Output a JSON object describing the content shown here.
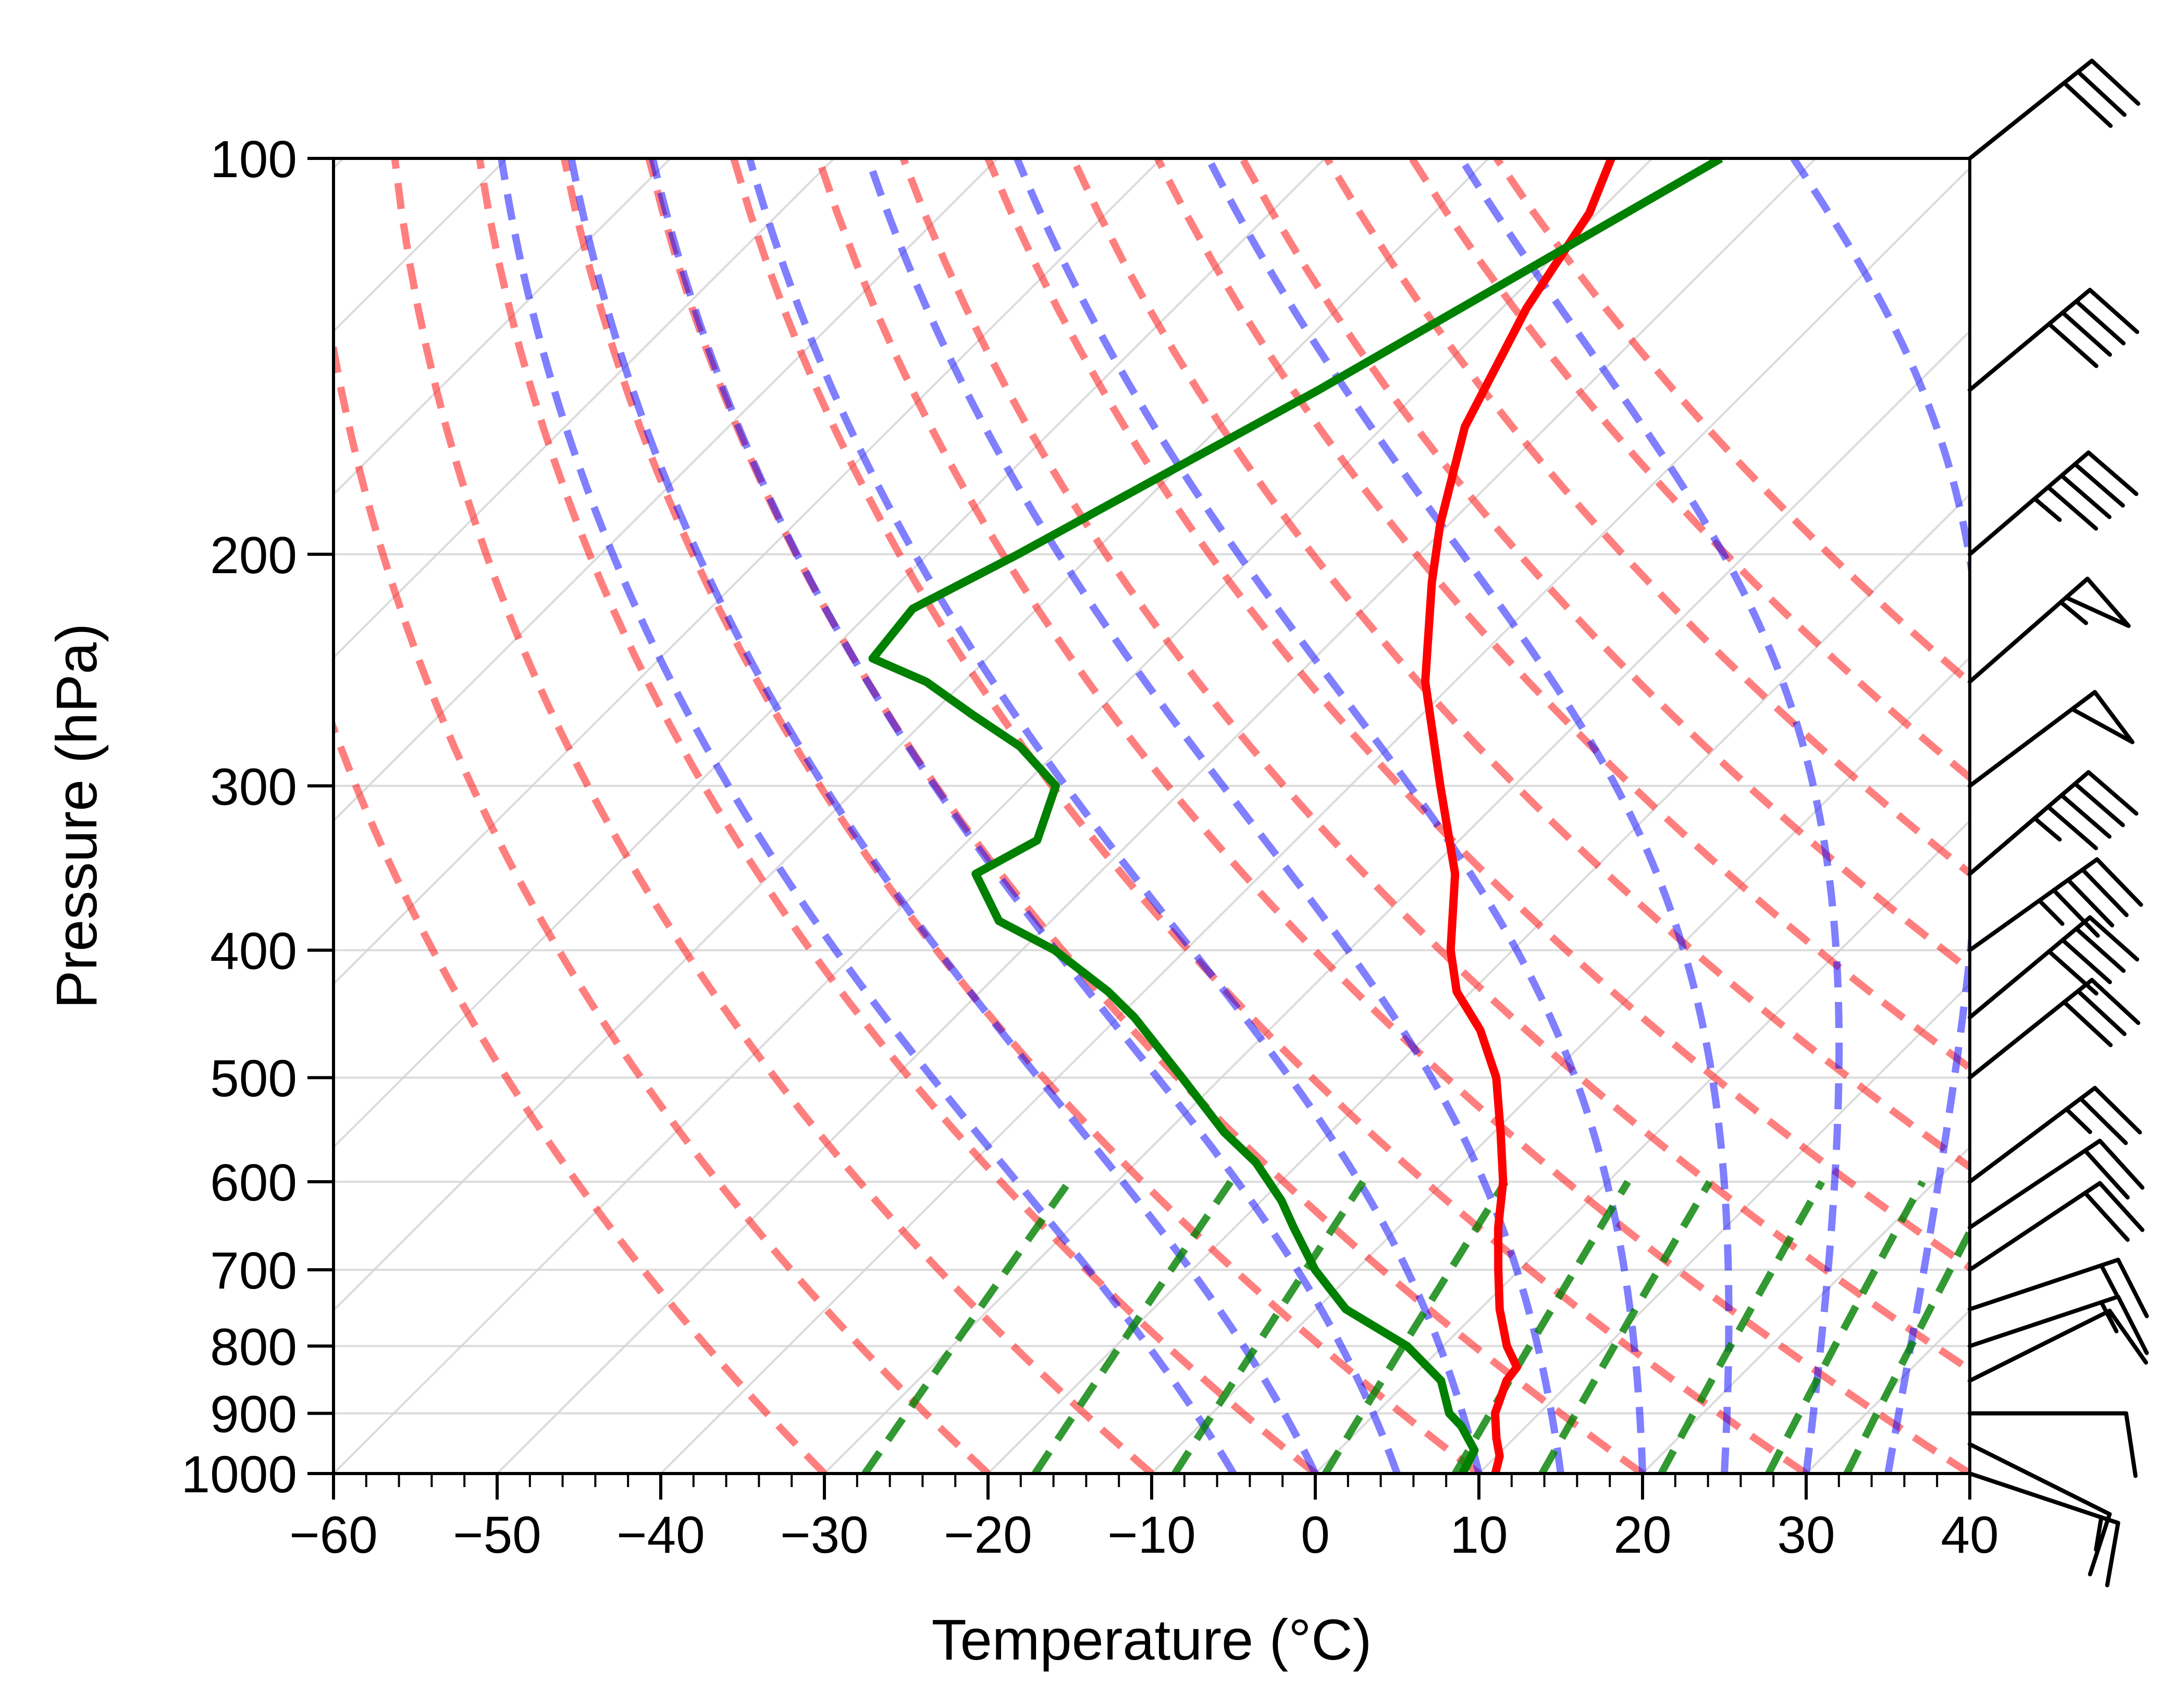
{
  "chart_data": {
    "type": "line",
    "subtype": "skew-t log-p",
    "xlabel": "Temperature (°C)",
    "ylabel": "Pressure (hPa)",
    "xlim": [
      -60,
      40
    ],
    "ylim": [
      1000,
      100
    ],
    "y_scale": "log",
    "x_ticks": [
      -60,
      -50,
      -40,
      -30,
      -20,
      -10,
      0,
      10,
      20,
      30,
      40
    ],
    "x_tick_labels": [
      "−60",
      "−50",
      "−40",
      "−30",
      "−20",
      "−10",
      "0",
      "10",
      "20",
      "30",
      "40"
    ],
    "y_ticks": [
      100,
      200,
      300,
      400,
      500,
      600,
      700,
      800,
      900,
      1000
    ],
    "y_tick_labels": [
      "100",
      "200",
      "300",
      "400",
      "500",
      "600",
      "700",
      "800",
      "900",
      "1000"
    ],
    "grid": true,
    "colors": {
      "temperature": "#ff0000",
      "dewpoint": "#008000",
      "dry_adiabats": "#ff0000",
      "moist_adiabats": "#0000ff",
      "mixing_ratio_lines": "#008000",
      "isotherms": "#d3d3d3",
      "wind_barbs": "#000000"
    },
    "series": [
      {
        "role": "temperature",
        "style": "solid",
        "points": [
          {
            "p": 1000,
            "t": 11.0
          },
          {
            "p": 970,
            "t": 10.2
          },
          {
            "p": 940,
            "t": 8.9
          },
          {
            "p": 900,
            "t": 7.3
          },
          {
            "p": 850,
            "t": 6.0
          },
          {
            "p": 830,
            "t": 5.8
          },
          {
            "p": 800,
            "t": 3.9
          },
          {
            "p": 750,
            "t": 1.2
          },
          {
            "p": 700,
            "t": -1.3
          },
          {
            "p": 650,
            "t": -3.9
          },
          {
            "p": 600,
            "t": -6.4
          },
          {
            "p": 550,
            "t": -9.6
          },
          {
            "p": 500,
            "t": -13.2
          },
          {
            "p": 460,
            "t": -17.1
          },
          {
            "p": 430,
            "t": -20.9
          },
          {
            "p": 400,
            "t": -23.8
          },
          {
            "p": 350,
            "t": -28.2
          },
          {
            "p": 300,
            "t": -34.5
          },
          {
            "p": 250,
            "t": -41.8
          },
          {
            "p": 210,
            "t": -47.5
          },
          {
            "p": 190,
            "t": -50.5
          },
          {
            "p": 160,
            "t": -55.0
          },
          {
            "p": 130,
            "t": -58.5
          },
          {
            "p": 110,
            "t": -60.5
          },
          {
            "p": 100,
            "t": -62.5
          }
        ]
      },
      {
        "role": "dewpoint",
        "style": "solid",
        "points": [
          {
            "p": 1000,
            "t": 9.0
          },
          {
            "p": 960,
            "t": 8.3
          },
          {
            "p": 920,
            "t": 6.0
          },
          {
            "p": 900,
            "t": 4.5
          },
          {
            "p": 850,
            "t": 2.0
          },
          {
            "p": 800,
            "t": -2.2
          },
          {
            "p": 750,
            "t": -8.2
          },
          {
            "p": 700,
            "t": -12.5
          },
          {
            "p": 650,
            "t": -16.4
          },
          {
            "p": 620,
            "t": -18.8
          },
          {
            "p": 580,
            "t": -22.7
          },
          {
            "p": 550,
            "t": -26.5
          },
          {
            "p": 500,
            "t": -32.4
          },
          {
            "p": 450,
            "t": -39.0
          },
          {
            "p": 430,
            "t": -42.2
          },
          {
            "p": 400,
            "t": -48.0
          },
          {
            "p": 380,
            "t": -53.2
          },
          {
            "p": 350,
            "t": -57.5
          },
          {
            "p": 330,
            "t": -55.8
          },
          {
            "p": 300,
            "t": -58.0
          },
          {
            "p": 280,
            "t": -62.6
          },
          {
            "p": 265,
            "t": -67.4
          },
          {
            "p": 250,
            "t": -72.3
          },
          {
            "p": 240,
            "t": -77.0
          },
          {
            "p": 220,
            "t": -77.6
          },
          {
            "p": 200,
            "t": -74.5
          },
          {
            "p": 150,
            "t": -66.2
          },
          {
            "p": 100,
            "t": -55.8
          }
        ]
      }
    ],
    "dry_adiabats_theta_c": [
      -30,
      -20,
      -10,
      0,
      10,
      20,
      30,
      40,
      50,
      60,
      70,
      80,
      90,
      100,
      110,
      120
    ],
    "moist_adiabats_start_t_c_at_1000": [
      -5,
      0,
      5,
      10,
      15,
      20,
      25,
      30,
      35
    ],
    "mixing_ratio_lines_g_per_kg": [
      0.4,
      1,
      2,
      4,
      7,
      10,
      16,
      24,
      32
    ],
    "wind_barbs": [
      {
        "p": 100,
        "u": -25,
        "v": -20
      },
      {
        "p": 150,
        "u": -30,
        "v": -25
      },
      {
        "p": 200,
        "u": -35,
        "v": -30
      },
      {
        "p": 250,
        "u": -40,
        "v": -35
      },
      {
        "p": 300,
        "u": -40,
        "v": -30
      },
      {
        "p": 350,
        "u": -35,
        "v": -30
      },
      {
        "p": 400,
        "u": -35,
        "v": -25
      },
      {
        "p": 450,
        "u": -30,
        "v": -25
      },
      {
        "p": 500,
        "u": -25,
        "v": -20
      },
      {
        "p": 600,
        "u": -20,
        "v": -15
      },
      {
        "p": 650,
        "u": -15,
        "v": -10
      },
      {
        "p": 700,
        "u": -15,
        "v": -10
      },
      {
        "p": 750,
        "u": -15,
        "v": -5
      },
      {
        "p": 800,
        "u": -15,
        "v": -5
      },
      {
        "p": 850,
        "u": -10,
        "v": -5
      },
      {
        "p": 900,
        "u": -10,
        "v": 0
      },
      {
        "p": 950,
        "u": -10,
        "v": 5
      },
      {
        "p": 1000,
        "u": -15,
        "v": 5
      }
    ]
  }
}
